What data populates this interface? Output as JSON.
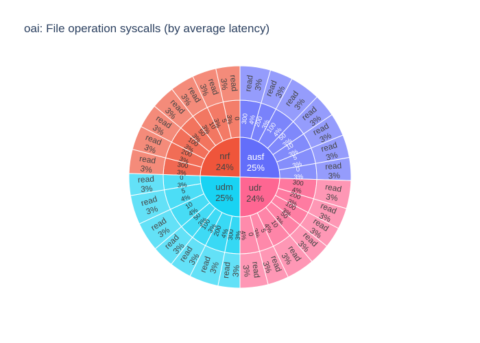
{
  "chart_data": {
    "type": "sunburst",
    "title": "oai: File operation syscalls (by average latency)",
    "colors": {
      "ausf": "#636efa",
      "udr": "#ef553b",
      "udm": "#00cc96",
      "nrf": "#ab63fa",
      "slice_ausf": "#636efa",
      "slice_udr": "#fe6692",
      "slice_udm": "#19d3f3",
      "slice_nrf": "#ef553b"
    },
    "nodes": [
      {
        "name": "ausf",
        "value": 25,
        "label": "ausf",
        "percent": "25%",
        "color": "#636efa",
        "children": [
          {
            "name": "300",
            "value": 4,
            "percent": "4%"
          },
          {
            "name": "200",
            "value": 3,
            "percent": "3%"
          },
          {
            "name": "100",
            "value": 4,
            "percent": "4%"
          },
          {
            "name": "50",
            "value": 3,
            "percent": "3%"
          },
          {
            "name": "10",
            "value": 3,
            "percent": "3%"
          },
          {
            "name": "5",
            "value": 3,
            "percent": "3%"
          },
          {
            "name": "0",
            "value": 3,
            "percent": "3%"
          }
        ]
      },
      {
        "name": "udr",
        "value": 24,
        "label": "udr",
        "percent": "24%",
        "color": "#fe6692",
        "children": [
          {
            "name": "300",
            "value": 4,
            "percent": "4%"
          },
          {
            "name": "200",
            "value": 3,
            "percent": "3%"
          },
          {
            "name": "100",
            "value": 3,
            "percent": "3%"
          },
          {
            "name": "50",
            "value": 3,
            "percent": "3%"
          },
          {
            "name": "10",
            "value": 4,
            "percent": "4%"
          },
          {
            "name": "5",
            "value": 3,
            "percent": "3%"
          },
          {
            "name": "0",
            "value": 4,
            "percent": "4%"
          }
        ]
      },
      {
        "name": "udm",
        "value": 25,
        "label": "udm",
        "percent": "25%",
        "color": "#19d3f3",
        "children": [
          {
            "name": "300",
            "value": 3,
            "percent": "3%"
          },
          {
            "name": "200",
            "value": 4,
            "percent": "4%"
          },
          {
            "name": "100",
            "value": 3,
            "percent": "3%"
          },
          {
            "name": "50",
            "value": 3,
            "percent": "3%"
          },
          {
            "name": "10",
            "value": 4,
            "percent": "4%"
          },
          {
            "name": "5",
            "value": 4,
            "percent": "4%"
          },
          {
            "name": "0",
            "value": 3,
            "percent": "3%"
          }
        ]
      },
      {
        "name": "nrf",
        "value": 24,
        "label": "nrf",
        "percent": "24%",
        "color": "#ef553b",
        "children": [
          {
            "name": "300",
            "value": 3,
            "percent": "3%"
          },
          {
            "name": "200",
            "value": 3,
            "percent": "3%"
          },
          {
            "name": "100",
            "value": 3,
            "percent": "3%"
          },
          {
            "name": "50",
            "value": 3,
            "percent": "3%"
          },
          {
            "name": "10",
            "value": 3,
            "percent": "3%"
          },
          {
            "name": "5",
            "value": 3,
            "percent": "3%"
          },
          {
            "name": "0",
            "value": 3,
            "percent": "3%"
          }
        ]
      }
    ],
    "leaf_label": "read",
    "leaf_percent": "3%"
  }
}
